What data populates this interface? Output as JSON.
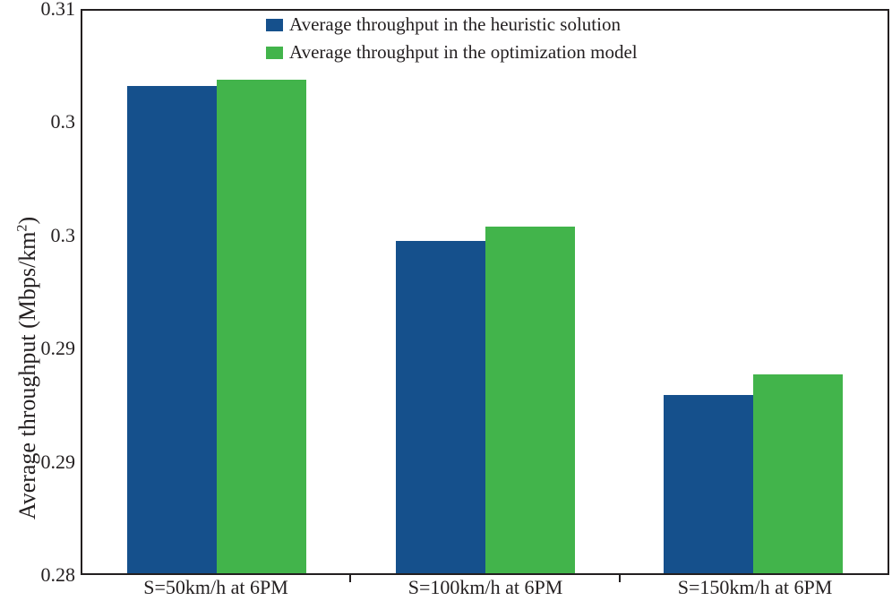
{
  "figure": {
    "background_color": "#ffffff",
    "frame_color": "#231f20",
    "text_color": "#231f20"
  },
  "chart_data": {
    "type": "bar",
    "title": "",
    "ylabel_prefix": "Average throughput (Mbps/km",
    "ylabel_superscript": "2",
    "ylabel_suffix": ")",
    "xlabel": "",
    "categories": [
      "S=50km/h at 6PM",
      "S=100km/h at 6PM",
      "S=150km/h at 6PM"
    ],
    "series": [
      {
        "name": "Average throughput in the heuristic solution",
        "color": "#15508c",
        "values": [
          0.306,
          0.2977,
          0.2895
        ]
      },
      {
        "name": "Average throughput in the optimization model",
        "color": "#42b44b",
        "values": [
          0.3063,
          0.2985,
          0.2906
        ]
      }
    ],
    "ylim": [
      0.28,
      0.31
    ],
    "ytick_values_top_to_bottom": [
      0.31,
      0.304,
      0.298,
      0.292,
      0.286,
      0.28
    ],
    "ytick_labels_top_to_bottom": [
      "0.31",
      "0.3",
      "0.3",
      "0.29",
      "0.29",
      "0.28"
    ],
    "grid": false,
    "legend_position": "top-center",
    "legend_orientation": "vertical"
  }
}
